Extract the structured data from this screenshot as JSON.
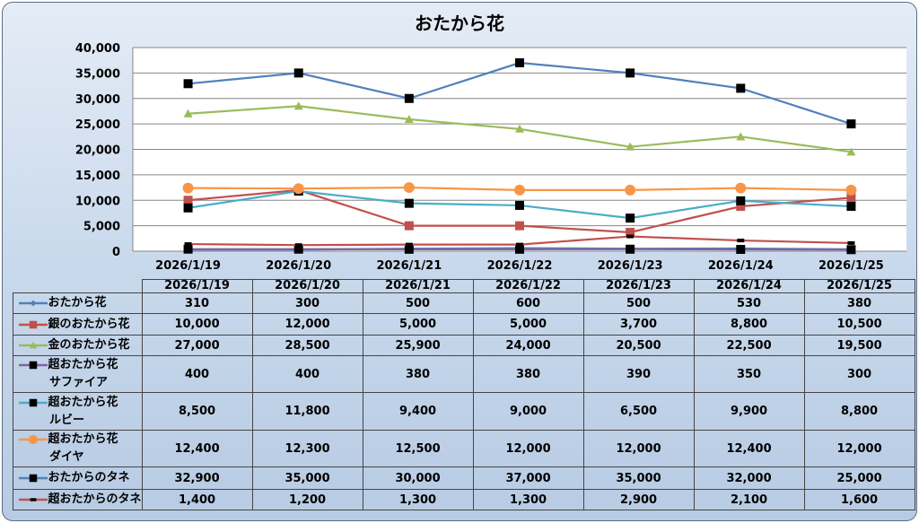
{
  "chart_data": {
    "type": "line",
    "title": "おたから花",
    "categories": [
      "2026/1/19",
      "2026/1/20",
      "2026/1/21",
      "2026/1/22",
      "2026/1/23",
      "2026/1/24",
      "2026/1/25"
    ],
    "ylim": [
      0,
      40000
    ],
    "yticks": [
      "0",
      "5,000",
      "10,000",
      "15,000",
      "20,000",
      "25,000",
      "30,000",
      "35,000",
      "40,000"
    ],
    "grid": true,
    "legend": "data-table",
    "series": [
      {
        "name": "おたから花",
        "name2": "",
        "color": "#4f81bd",
        "marker": "diamond",
        "values": [
          310,
          300,
          500,
          600,
          500,
          530,
          380
        ],
        "labels": [
          "310",
          "300",
          "500",
          "600",
          "500",
          "530",
          "380"
        ]
      },
      {
        "name": "銀のおたから花",
        "name2": "",
        "color": "#c0504d",
        "marker": "square",
        "values": [
          10000,
          12000,
          5000,
          5000,
          3700,
          8800,
          10500
        ],
        "labels": [
          "10,000",
          "12,000",
          "5,000",
          "5,000",
          "3,700",
          "8,800",
          "10,500"
        ]
      },
      {
        "name": "金のおたから花",
        "name2": "",
        "color": "#9bbb59",
        "marker": "triangle",
        "values": [
          27000,
          28500,
          25900,
          24000,
          20500,
          22500,
          19500
        ],
        "labels": [
          "27,000",
          "28,500",
          "25,900",
          "24,000",
          "20,500",
          "22,500",
          "19,500"
        ]
      },
      {
        "name": "超おたから花",
        "name2": "サファイア",
        "color": "#8064a2",
        "marker": "blacksquare",
        "values": [
          400,
          400,
          380,
          380,
          390,
          350,
          300
        ],
        "labels": [
          "400",
          "400",
          "380",
          "380",
          "390",
          "350",
          "300"
        ]
      },
      {
        "name": "超おたから花",
        "name2": "ルビー",
        "color": "#4bacc6",
        "marker": "blacksquare",
        "values": [
          8500,
          11800,
          9400,
          9000,
          6500,
          9900,
          8800
        ],
        "labels": [
          "8,500",
          "11,800",
          "9,400",
          "9,000",
          "6,500",
          "9,900",
          "8,800"
        ]
      },
      {
        "name": "超おたから花",
        "name2": "ダイヤ",
        "color": "#f79646",
        "marker": "circle",
        "values": [
          12400,
          12300,
          12500,
          12000,
          12000,
          12400,
          12000
        ],
        "labels": [
          "12,400",
          "12,300",
          "12,500",
          "12,000",
          "12,000",
          "12,400",
          "12,000"
        ]
      },
      {
        "name": "おたからのタネ",
        "name2": "",
        "color": "#4f81bd",
        "marker": "blacksquare",
        "values": [
          32900,
          35000,
          30000,
          37000,
          35000,
          32000,
          25000
        ],
        "labels": [
          "32,900",
          "35,000",
          "30,000",
          "37,000",
          "35,000",
          "32,000",
          "25,000"
        ]
      },
      {
        "name": "超おたからのタネ",
        "name2": "",
        "color": "#c0504d",
        "marker": "dash",
        "values": [
          1400,
          1200,
          1300,
          1300,
          2900,
          2100,
          1600
        ],
        "labels": [
          "1,400",
          "1,200",
          "1,300",
          "1,300",
          "2,900",
          "2,100",
          "1,600"
        ]
      }
    ]
  }
}
